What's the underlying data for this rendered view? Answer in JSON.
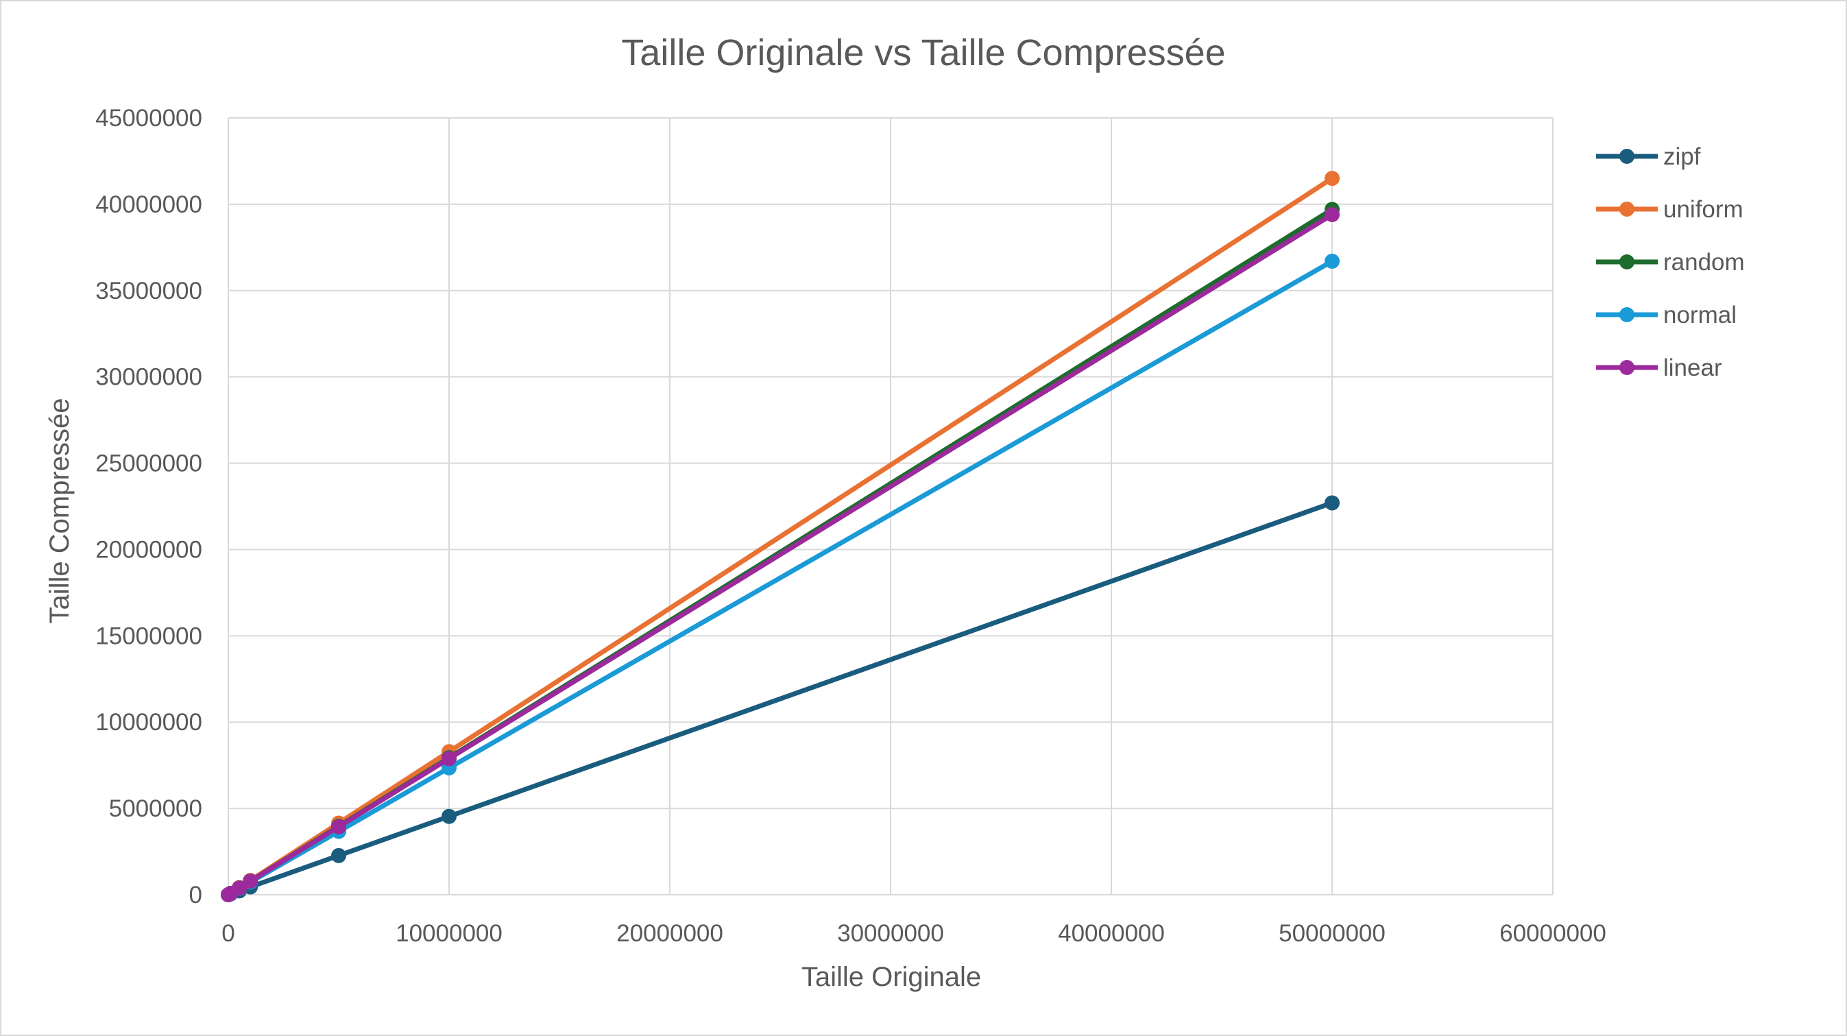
{
  "chart_data": {
    "type": "line",
    "title": "Taille Originale vs Taille Compressée",
    "xlabel": "Taille Originale",
    "ylabel": "Taille Compressée",
    "xlim": [
      0,
      60000000
    ],
    "ylim": [
      0,
      45000000
    ],
    "xticks": [
      0,
      10000000,
      20000000,
      30000000,
      40000000,
      50000000,
      60000000
    ],
    "xtick_labels": [
      "0",
      "10000000",
      "20000000",
      "30000000",
      "40000000",
      "50000000",
      "60000000"
    ],
    "yticks": [
      0,
      5000000,
      10000000,
      15000000,
      20000000,
      25000000,
      30000000,
      35000000,
      40000000,
      45000000
    ],
    "ytick_labels": [
      "0",
      "5000000",
      "10000000",
      "15000000",
      "20000000",
      "25000000",
      "30000000",
      "35000000",
      "40000000",
      "45000000"
    ],
    "grid": true,
    "legend": "right",
    "series": [
      {
        "name": "zipf",
        "color": "#1a5c7e",
        "x": [
          0,
          100000,
          500000,
          1000000,
          5000000,
          10000000,
          50000000
        ],
        "y": [
          0,
          45000,
          225000,
          455000,
          2270000,
          4540000,
          22700000
        ]
      },
      {
        "name": "uniform",
        "color": "#e97132",
        "x": [
          0,
          100000,
          500000,
          1000000,
          5000000,
          10000000,
          50000000
        ],
        "y": [
          0,
          83000,
          415000,
          830000,
          4150000,
          8290000,
          41500000
        ]
      },
      {
        "name": "random",
        "color": "#1e6b2e",
        "x": [
          0,
          100000,
          500000,
          1000000,
          5000000,
          10000000,
          50000000
        ],
        "y": [
          0,
          79000,
          397000,
          794000,
          3970000,
          7940000,
          39700000
        ]
      },
      {
        "name": "normal",
        "color": "#1a9ad6",
        "x": [
          0,
          100000,
          500000,
          1000000,
          5000000,
          10000000,
          50000000
        ],
        "y": [
          0,
          73000,
          367000,
          735000,
          3670000,
          7350000,
          36700000
        ]
      },
      {
        "name": "linear",
        "color": "#9c2a9c",
        "x": [
          0,
          100000,
          500000,
          1000000,
          5000000,
          10000000,
          50000000
        ],
        "y": [
          0,
          79000,
          394000,
          789000,
          3940000,
          7890000,
          39400000
        ]
      }
    ]
  }
}
